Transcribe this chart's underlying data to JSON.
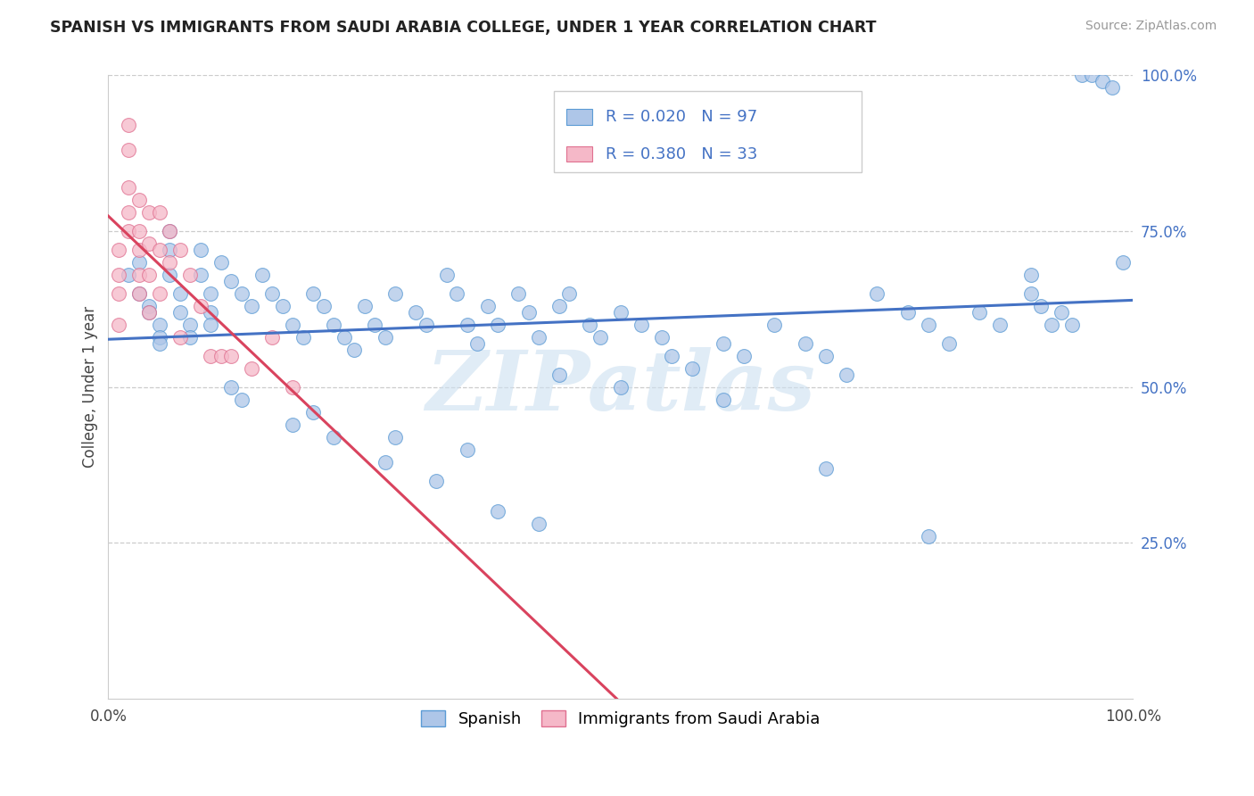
{
  "title": "SPANISH VS IMMIGRANTS FROM SAUDI ARABIA COLLEGE, UNDER 1 YEAR CORRELATION CHART",
  "source": "Source: ZipAtlas.com",
  "ylabel": "College, Under 1 year",
  "legend_labels": [
    "Spanish",
    "Immigrants from Saudi Arabia"
  ],
  "r_spanish": 0.02,
  "n_spanish": 97,
  "r_saudi": 0.38,
  "n_saudi": 33,
  "xlim": [
    0.0,
    1.0
  ],
  "ylim": [
    0.0,
    1.0
  ],
  "ytick_positions": [
    0.25,
    0.5,
    0.75,
    1.0
  ],
  "ytick_labels": [
    "25.0%",
    "50.0%",
    "75.0%",
    "100.0%"
  ],
  "color_spanish": "#aec6e8",
  "color_saudi": "#f5b8c8",
  "edge_color_spanish": "#5b9bd5",
  "edge_color_saudi": "#e07090",
  "line_color_spanish": "#4472c4",
  "line_color_saudi": "#d9435e",
  "watermark": "ZIPatlas",
  "watermark_color": "#cce0f0",
  "sp_x": [
    0.02,
    0.03,
    0.03,
    0.04,
    0.04,
    0.05,
    0.05,
    0.05,
    0.06,
    0.06,
    0.06,
    0.07,
    0.07,
    0.08,
    0.08,
    0.09,
    0.09,
    0.1,
    0.1,
    0.1,
    0.11,
    0.12,
    0.13,
    0.14,
    0.15,
    0.16,
    0.17,
    0.18,
    0.19,
    0.2,
    0.21,
    0.22,
    0.23,
    0.24,
    0.25,
    0.26,
    0.27,
    0.28,
    0.3,
    0.31,
    0.33,
    0.34,
    0.35,
    0.36,
    0.37,
    0.38,
    0.4,
    0.41,
    0.42,
    0.44,
    0.45,
    0.47,
    0.48,
    0.5,
    0.52,
    0.54,
    0.55,
    0.57,
    0.6,
    0.62,
    0.65,
    0.68,
    0.7,
    0.72,
    0.75,
    0.78,
    0.8,
    0.82,
    0.85,
    0.87,
    0.9,
    0.91,
    0.92,
    0.93,
    0.94,
    0.95,
    0.96,
    0.97,
    0.98,
    0.99,
    0.13,
    0.18,
    0.22,
    0.27,
    0.32,
    0.38,
    0.42,
    0.12,
    0.2,
    0.28,
    0.35,
    0.44,
    0.5,
    0.6,
    0.7,
    0.8,
    0.9
  ],
  "sp_y": [
    0.68,
    0.7,
    0.65,
    0.63,
    0.62,
    0.6,
    0.58,
    0.57,
    0.75,
    0.72,
    0.68,
    0.65,
    0.62,
    0.6,
    0.58,
    0.72,
    0.68,
    0.65,
    0.62,
    0.6,
    0.7,
    0.67,
    0.65,
    0.63,
    0.68,
    0.65,
    0.63,
    0.6,
    0.58,
    0.65,
    0.63,
    0.6,
    0.58,
    0.56,
    0.63,
    0.6,
    0.58,
    0.65,
    0.62,
    0.6,
    0.68,
    0.65,
    0.6,
    0.57,
    0.63,
    0.6,
    0.65,
    0.62,
    0.58,
    0.63,
    0.65,
    0.6,
    0.58,
    0.62,
    0.6,
    0.58,
    0.55,
    0.53,
    0.57,
    0.55,
    0.6,
    0.57,
    0.55,
    0.52,
    0.65,
    0.62,
    0.6,
    0.57,
    0.62,
    0.6,
    0.65,
    0.63,
    0.6,
    0.62,
    0.6,
    1.0,
    1.0,
    0.99,
    0.98,
    0.7,
    0.48,
    0.44,
    0.42,
    0.38,
    0.35,
    0.3,
    0.28,
    0.5,
    0.46,
    0.42,
    0.4,
    0.52,
    0.5,
    0.48,
    0.37,
    0.26,
    0.68
  ],
  "sa_x": [
    0.01,
    0.01,
    0.01,
    0.01,
    0.02,
    0.02,
    0.02,
    0.02,
    0.02,
    0.03,
    0.03,
    0.03,
    0.03,
    0.03,
    0.04,
    0.04,
    0.04,
    0.04,
    0.05,
    0.05,
    0.05,
    0.06,
    0.06,
    0.07,
    0.07,
    0.08,
    0.09,
    0.1,
    0.11,
    0.12,
    0.14,
    0.16,
    0.18
  ],
  "sa_y": [
    0.72,
    0.68,
    0.65,
    0.6,
    0.92,
    0.88,
    0.82,
    0.78,
    0.75,
    0.8,
    0.75,
    0.72,
    0.68,
    0.65,
    0.78,
    0.73,
    0.68,
    0.62,
    0.78,
    0.72,
    0.65,
    0.75,
    0.7,
    0.72,
    0.58,
    0.68,
    0.63,
    0.55,
    0.55,
    0.55,
    0.53,
    0.58,
    0.5
  ]
}
